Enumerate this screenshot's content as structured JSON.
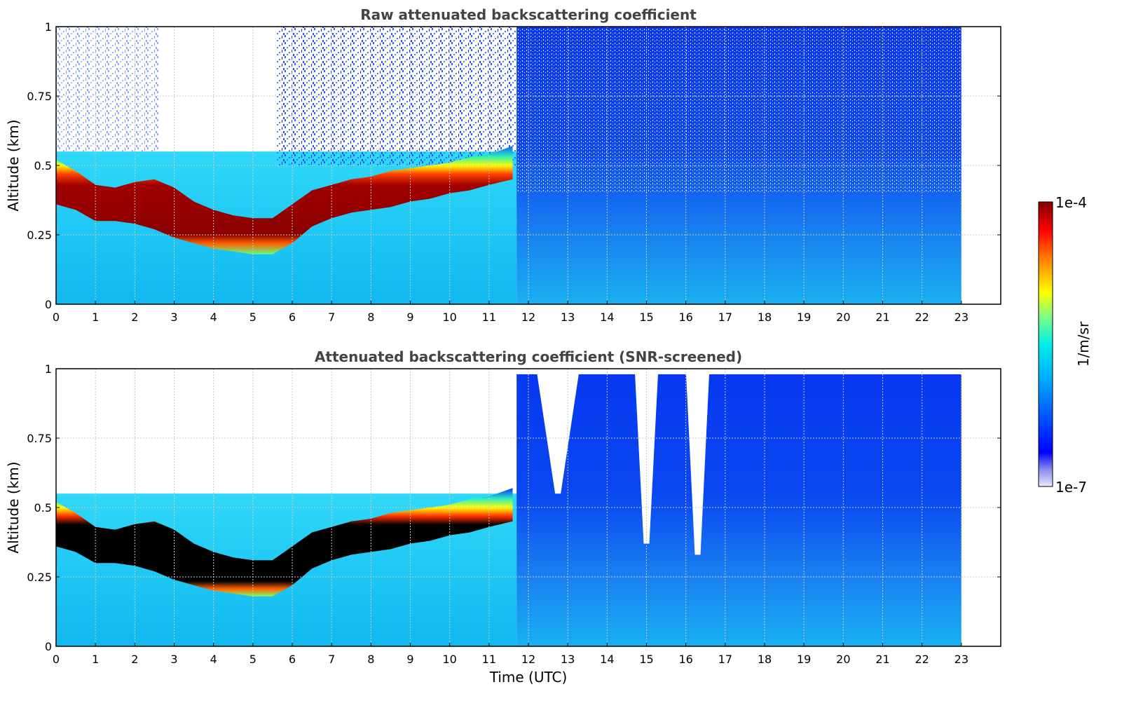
{
  "chart_data": [
    {
      "type": "heatmap",
      "title": "Raw attenuated backscattering coefficient",
      "xlabel": "",
      "ylabel": "Altitude (km)",
      "xlim": [
        0,
        24
      ],
      "ylim": [
        0,
        1
      ],
      "x_ticks": [
        "0",
        "1",
        "2",
        "3",
        "4",
        "5",
        "6",
        "7",
        "8",
        "9",
        "10",
        "11",
        "12",
        "13",
        "14",
        "15",
        "16",
        "17",
        "18",
        "19",
        "20",
        "21",
        "22",
        "23"
      ],
      "y_ticks": [
        "0",
        "0.25",
        "0.5",
        "0.75",
        "1"
      ],
      "data_extent_hours": [
        0,
        23
      ],
      "grid": true,
      "layer_top_km": [
        [
          0,
          0.52
        ],
        [
          0.5,
          0.48
        ],
        [
          1,
          0.43
        ],
        [
          1.5,
          0.42
        ],
        [
          2,
          0.44
        ],
        [
          2.5,
          0.45
        ],
        [
          3,
          0.42
        ],
        [
          3.5,
          0.37
        ],
        [
          4,
          0.34
        ],
        [
          4.5,
          0.32
        ],
        [
          5,
          0.31
        ],
        [
          5.5,
          0.31
        ],
        [
          6,
          0.36
        ],
        [
          6.5,
          0.41
        ],
        [
          7,
          0.43
        ],
        [
          7.5,
          0.45
        ],
        [
          8,
          0.46
        ],
        [
          8.5,
          0.48
        ],
        [
          9,
          0.49
        ],
        [
          9.5,
          0.5
        ],
        [
          10,
          0.51
        ],
        [
          10.5,
          0.53
        ],
        [
          11,
          0.54
        ],
        [
          11.6,
          0.57
        ]
      ],
      "layer_bottom_km": [
        [
          0,
          0.36
        ],
        [
          0.5,
          0.34
        ],
        [
          1,
          0.3
        ],
        [
          1.5,
          0.3
        ],
        [
          2,
          0.29
        ],
        [
          2.5,
          0.27
        ],
        [
          3,
          0.24
        ],
        [
          3.5,
          0.22
        ],
        [
          4,
          0.2
        ],
        [
          4.5,
          0.19
        ],
        [
          5,
          0.18
        ],
        [
          5.5,
          0.18
        ],
        [
          6,
          0.22
        ],
        [
          6.5,
          0.28
        ],
        [
          7,
          0.31
        ],
        [
          7.5,
          0.33
        ],
        [
          8,
          0.34
        ],
        [
          8.5,
          0.35
        ],
        [
          9,
          0.37
        ],
        [
          9.5,
          0.38
        ],
        [
          10,
          0.4
        ],
        [
          10.5,
          0.41
        ],
        [
          11,
          0.43
        ],
        [
          11.6,
          0.45
        ]
      ]
    },
    {
      "type": "heatmap",
      "title": "Attenuated backscattering coefficient (SNR-screened)",
      "xlabel": "Time (UTC)",
      "ylabel": "Altitude (km)",
      "xlim": [
        0,
        24
      ],
      "ylim": [
        0,
        1
      ],
      "x_ticks": [
        "0",
        "1",
        "2",
        "3",
        "4",
        "5",
        "6",
        "7",
        "8",
        "9",
        "10",
        "11",
        "12",
        "13",
        "14",
        "15",
        "16",
        "17",
        "18",
        "19",
        "20",
        "21",
        "22",
        "23"
      ],
      "y_ticks": [
        "0",
        "0.25",
        "0.5",
        "0.75",
        "1"
      ],
      "data_extent_hours": [
        0,
        23
      ],
      "grid": true,
      "screened_gaps": [
        [
          14.7,
          15.3,
          0.37
        ],
        [
          16.0,
          16.6,
          0.33
        ],
        [
          12.2,
          13.3,
          0.55
        ]
      ]
    }
  ],
  "colorbar": {
    "label": "1/m/sr",
    "min_label": "1e-7",
    "max_label": "1e-4",
    "colormap": "jet",
    "scale": "log"
  }
}
